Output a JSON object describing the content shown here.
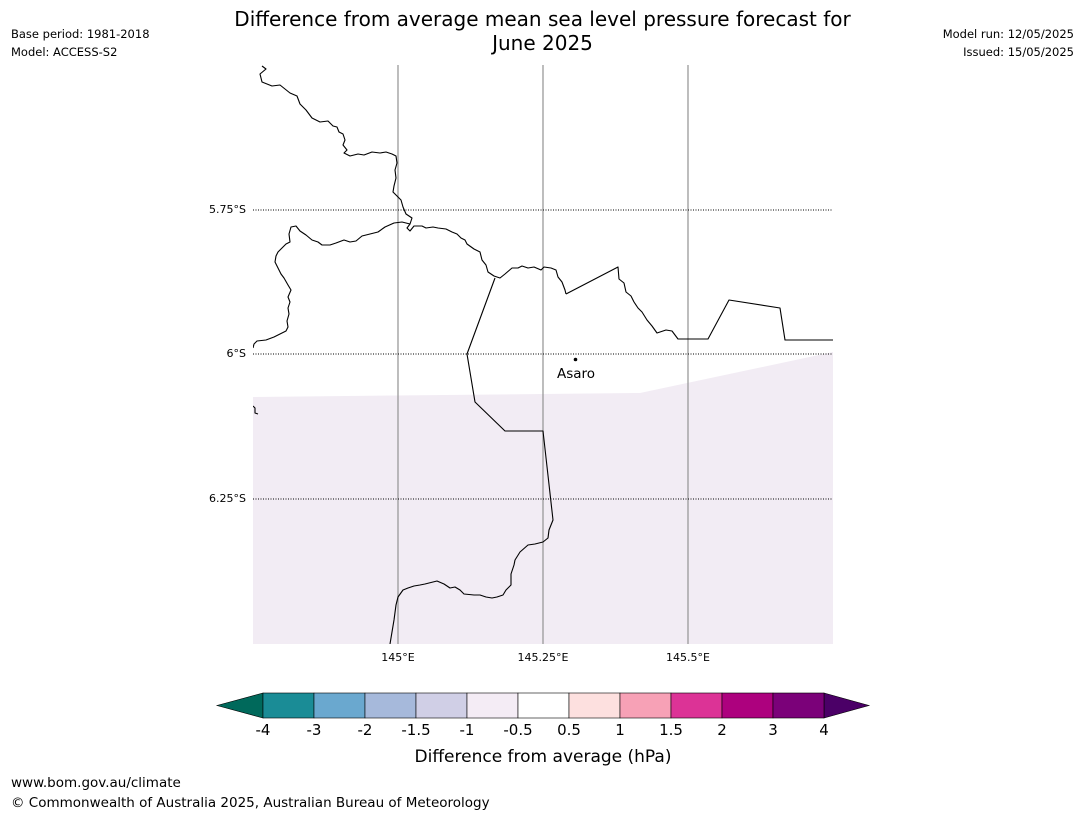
{
  "title_line1": "Difference from average mean sea level pressure forecast for",
  "title_line2": "June 2025",
  "meta_left": {
    "base_period": "Base period: 1981-2018",
    "model": "Model: ACCESS-S2"
  },
  "meta_right": {
    "model_run": "Model run: 12/05/2025",
    "issued": "Issued: 15/05/2025"
  },
  "map": {
    "lat_labels": [
      "5.75°S",
      "6°S",
      "6.25°S"
    ],
    "lon_labels": [
      "145°E",
      "145.25°E",
      "145.5°E"
    ],
    "place": {
      "name": "Asaro"
    },
    "fill_color": "#f2ecf4"
  },
  "colorbar": {
    "label": "Difference from average (hPa)",
    "tick_labels": [
      "-4",
      "-3",
      "-2",
      "-1.5",
      "-1",
      "-0.5",
      "0.5",
      "1",
      "1.5",
      "2",
      "3",
      "4"
    ],
    "colors": [
      "#1a8c96",
      "#6aa8cf",
      "#a6b9db",
      "#d0cfe6",
      "#f4ecf5",
      "#ffffff",
      "#fde0df",
      "#f7a1b6",
      "#dc3396",
      "#ad017e",
      "#7b0179"
    ],
    "under_color": "#00695b",
    "over_color": "#4b0067"
  },
  "footer": {
    "url": "www.bom.gov.au/climate",
    "copyright": "© Commonwealth of Australia 2025, Australian Bureau of Meteorology"
  }
}
